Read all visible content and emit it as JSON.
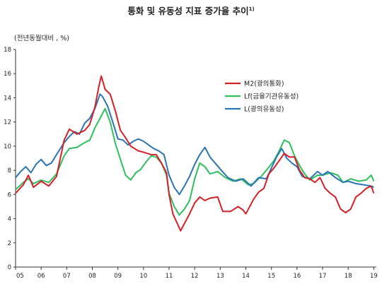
{
  "chart_data": {
    "type": "line",
    "title": "통화 및 유동성 지표 증가율 추이",
    "title_footnote": "1)",
    "unit_label": "(전년동월대비 , %)",
    "ylim": [
      0,
      18
    ],
    "y_ticks": [
      "0",
      "2",
      "4",
      "6",
      "8",
      "10",
      "12",
      "14",
      "16",
      "18"
    ],
    "x_ticks": [
      "05",
      "06",
      "07",
      "08",
      "09",
      "10",
      "11",
      "12",
      "13",
      "14",
      "15",
      "16",
      "17",
      "18",
      "19"
    ],
    "xlim": [
      2005.0,
      2019.1
    ],
    "grid": false,
    "legend": "top-center",
    "series": [
      {
        "name": "M2(광의통화)",
        "color": "#d42027",
        "points": [
          [
            2005.0,
            6.1
          ],
          [
            2005.3,
            6.8
          ],
          [
            2005.5,
            7.6
          ],
          [
            2005.7,
            6.6
          ],
          [
            2006.0,
            7.1
          ],
          [
            2006.3,
            6.7
          ],
          [
            2006.6,
            7.5
          ],
          [
            2006.9,
            10.5
          ],
          [
            2007.1,
            11.4
          ],
          [
            2007.4,
            11.0
          ],
          [
            2007.7,
            11.3
          ],
          [
            2007.9,
            11.8
          ],
          [
            2008.1,
            13.2
          ],
          [
            2008.25,
            14.9
          ],
          [
            2008.35,
            15.8
          ],
          [
            2008.5,
            14.7
          ],
          [
            2008.7,
            14.3
          ],
          [
            2008.9,
            12.9
          ],
          [
            2009.1,
            11.3
          ],
          [
            2009.3,
            10.7
          ],
          [
            2009.5,
            10.0
          ],
          [
            2009.8,
            9.6
          ],
          [
            2010.0,
            9.5
          ],
          [
            2010.3,
            9.3
          ],
          [
            2010.5,
            9.3
          ],
          [
            2010.7,
            8.6
          ],
          [
            2010.9,
            7.8
          ],
          [
            2011.0,
            6.0
          ],
          [
            2011.15,
            4.4
          ],
          [
            2011.3,
            3.7
          ],
          [
            2011.45,
            3.0
          ],
          [
            2011.6,
            3.6
          ],
          [
            2011.8,
            4.4
          ],
          [
            2012.0,
            5.3
          ],
          [
            2012.2,
            5.8
          ],
          [
            2012.4,
            5.5
          ],
          [
            2012.6,
            5.7
          ],
          [
            2012.9,
            5.8
          ],
          [
            2013.1,
            4.6
          ],
          [
            2013.4,
            4.6
          ],
          [
            2013.7,
            5.0
          ],
          [
            2013.9,
            4.7
          ],
          [
            2014.0,
            4.4
          ],
          [
            2014.3,
            5.6
          ],
          [
            2014.5,
            6.2
          ],
          [
            2014.7,
            6.5
          ],
          [
            2014.9,
            7.7
          ],
          [
            2015.1,
            8.2
          ],
          [
            2015.3,
            8.8
          ],
          [
            2015.5,
            9.4
          ],
          [
            2015.7,
            9.1
          ],
          [
            2015.9,
            9.1
          ],
          [
            2016.1,
            8.0
          ],
          [
            2016.3,
            7.4
          ],
          [
            2016.5,
            7.3
          ],
          [
            2016.7,
            7.0
          ],
          [
            2016.9,
            7.4
          ],
          [
            2017.1,
            6.5
          ],
          [
            2017.3,
            6.1
          ],
          [
            2017.5,
            5.8
          ],
          [
            2017.7,
            4.8
          ],
          [
            2017.9,
            4.5
          ],
          [
            2018.1,
            4.8
          ],
          [
            2018.3,
            5.8
          ],
          [
            2018.5,
            6.1
          ],
          [
            2018.7,
            6.5
          ],
          [
            2018.9,
            6.7
          ],
          [
            2019.0,
            6.1
          ]
        ]
      },
      {
        "name": "Lf(금융기관유동성)",
        "color": "#2fbf5e",
        "points": [
          [
            2005.0,
            6.4
          ],
          [
            2005.3,
            7.0
          ],
          [
            2005.5,
            7.3
          ],
          [
            2005.7,
            6.9
          ],
          [
            2006.0,
            7.2
          ],
          [
            2006.3,
            7.0
          ],
          [
            2006.6,
            7.7
          ],
          [
            2006.9,
            9.2
          ],
          [
            2007.1,
            9.8
          ],
          [
            2007.4,
            9.9
          ],
          [
            2007.7,
            10.3
          ],
          [
            2007.9,
            10.5
          ],
          [
            2008.1,
            11.5
          ],
          [
            2008.3,
            12.3
          ],
          [
            2008.5,
            13.1
          ],
          [
            2008.7,
            12.0
          ],
          [
            2008.9,
            10.2
          ],
          [
            2009.1,
            8.9
          ],
          [
            2009.3,
            7.6
          ],
          [
            2009.5,
            7.2
          ],
          [
            2009.7,
            7.8
          ],
          [
            2009.9,
            8.1
          ],
          [
            2010.1,
            8.7
          ],
          [
            2010.3,
            9.2
          ],
          [
            2010.5,
            9.1
          ],
          [
            2010.7,
            8.6
          ],
          [
            2010.9,
            7.6
          ],
          [
            2011.0,
            6.1
          ],
          [
            2011.2,
            5.0
          ],
          [
            2011.4,
            4.3
          ],
          [
            2011.6,
            4.8
          ],
          [
            2011.8,
            5.5
          ],
          [
            2012.0,
            7.3
          ],
          [
            2012.2,
            8.6
          ],
          [
            2012.4,
            8.3
          ],
          [
            2012.6,
            7.7
          ],
          [
            2012.9,
            7.9
          ],
          [
            2013.2,
            7.4
          ],
          [
            2013.5,
            7.1
          ],
          [
            2013.8,
            7.3
          ],
          [
            2014.1,
            6.8
          ],
          [
            2014.3,
            6.9
          ],
          [
            2014.6,
            7.5
          ],
          [
            2014.8,
            8.0
          ],
          [
            2015.1,
            8.8
          ],
          [
            2015.3,
            9.6
          ],
          [
            2015.5,
            10.5
          ],
          [
            2015.7,
            10.3
          ],
          [
            2015.9,
            9.2
          ],
          [
            2016.1,
            8.4
          ],
          [
            2016.3,
            7.7
          ],
          [
            2016.5,
            7.2
          ],
          [
            2016.8,
            7.6
          ],
          [
            2017.0,
            7.6
          ],
          [
            2017.3,
            7.8
          ],
          [
            2017.6,
            7.6
          ],
          [
            2017.8,
            7.0
          ],
          [
            2018.1,
            7.3
          ],
          [
            2018.4,
            7.1
          ],
          [
            2018.7,
            7.2
          ],
          [
            2018.9,
            7.6
          ],
          [
            2019.0,
            7.1
          ]
        ]
      },
      {
        "name": "L(광의유동성)",
        "color": "#2a74b8",
        "points": [
          [
            2005.0,
            7.4
          ],
          [
            2005.2,
            7.9
          ],
          [
            2005.4,
            8.3
          ],
          [
            2005.6,
            7.8
          ],
          [
            2005.8,
            8.5
          ],
          [
            2006.0,
            8.9
          ],
          [
            2006.2,
            8.4
          ],
          [
            2006.4,
            8.6
          ],
          [
            2006.6,
            9.3
          ],
          [
            2006.9,
            10.3
          ],
          [
            2007.1,
            10.8
          ],
          [
            2007.3,
            11.2
          ],
          [
            2007.5,
            11.0
          ],
          [
            2007.7,
            11.9
          ],
          [
            2007.9,
            12.3
          ],
          [
            2008.1,
            13.1
          ],
          [
            2008.3,
            14.3
          ],
          [
            2008.4,
            14.1
          ],
          [
            2008.6,
            13.3
          ],
          [
            2008.8,
            12.0
          ],
          [
            2009.0,
            10.6
          ],
          [
            2009.2,
            10.5
          ],
          [
            2009.4,
            10.1
          ],
          [
            2009.6,
            10.4
          ],
          [
            2009.8,
            10.6
          ],
          [
            2010.0,
            10.4
          ],
          [
            2010.2,
            10.1
          ],
          [
            2010.4,
            9.8
          ],
          [
            2010.6,
            9.6
          ],
          [
            2010.8,
            9.3
          ],
          [
            2011.0,
            7.6
          ],
          [
            2011.2,
            6.6
          ],
          [
            2011.4,
            6.0
          ],
          [
            2011.6,
            6.7
          ],
          [
            2011.8,
            7.5
          ],
          [
            2012.0,
            8.5
          ],
          [
            2012.2,
            9.3
          ],
          [
            2012.4,
            9.9
          ],
          [
            2012.6,
            9.1
          ],
          [
            2012.8,
            8.6
          ],
          [
            2013.0,
            8.1
          ],
          [
            2013.3,
            7.4
          ],
          [
            2013.6,
            7.1
          ],
          [
            2013.9,
            7.3
          ],
          [
            2014.2,
            6.7
          ],
          [
            2014.5,
            7.4
          ],
          [
            2014.8,
            7.3
          ],
          [
            2015.0,
            8.2
          ],
          [
            2015.2,
            9.1
          ],
          [
            2015.4,
            9.8
          ],
          [
            2015.6,
            9.0
          ],
          [
            2015.8,
            8.6
          ],
          [
            2016.0,
            8.3
          ],
          [
            2016.2,
            7.5
          ],
          [
            2016.5,
            7.3
          ],
          [
            2016.8,
            7.9
          ],
          [
            2017.0,
            7.6
          ],
          [
            2017.2,
            7.9
          ],
          [
            2017.5,
            7.4
          ],
          [
            2017.8,
            7.0
          ],
          [
            2018.0,
            7.1
          ],
          [
            2018.3,
            6.9
          ],
          [
            2018.6,
            6.8
          ],
          [
            2018.9,
            6.7
          ],
          [
            2019.0,
            6.6
          ]
        ]
      }
    ]
  }
}
